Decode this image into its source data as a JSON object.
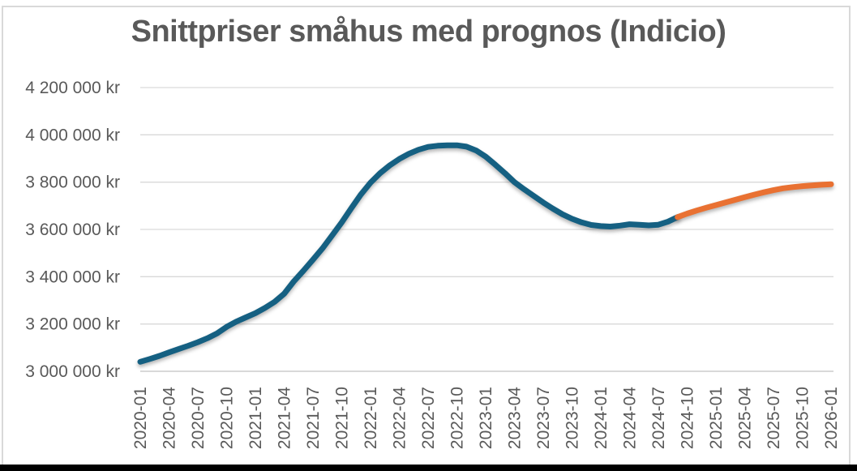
{
  "chart_data": {
    "type": "line",
    "title": "Snittpriser småhus med prognos (Indicio)",
    "xlabel": "",
    "ylabel": "",
    "y_unit": "kr",
    "ylim": [
      3000000,
      4200000
    ],
    "grid": true,
    "legend": "none",
    "y_ticks": [
      {
        "value": 4200000,
        "label": "4 200 000 kr"
      },
      {
        "value": 4000000,
        "label": "4 000 000 kr"
      },
      {
        "value": 3800000,
        "label": "3 800 000 kr"
      },
      {
        "value": 3600000,
        "label": "3 600 000 kr"
      },
      {
        "value": 3400000,
        "label": "3 400 000 kr"
      },
      {
        "value": 3200000,
        "label": "3 200 000 kr"
      },
      {
        "value": 3000000,
        "label": "3 000 000 kr"
      }
    ],
    "x_tick_labels": [
      "2020-01",
      "2020-04",
      "2020-07",
      "2020-10",
      "2021-01",
      "2021-04",
      "2021-07",
      "2021-10",
      "2022-01",
      "2022-04",
      "2022-07",
      "2022-10",
      "2023-01",
      "2023-04",
      "2023-07",
      "2023-10",
      "2024-01",
      "2024-04",
      "2024-07",
      "2024-10",
      "2025-01",
      "2025-04",
      "2025-07",
      "2025-10",
      "2026-01"
    ],
    "x_tick_every_months": 3,
    "months_total": 73,
    "series": [
      {
        "name": "actual",
        "color": "#156082",
        "start_index": 0,
        "values": [
          3040000,
          3052000,
          3065000,
          3080000,
          3094000,
          3108000,
          3123000,
          3140000,
          3160000,
          3188000,
          3210000,
          3228000,
          3246000,
          3268000,
          3294000,
          3328000,
          3380000,
          3425000,
          3472000,
          3520000,
          3575000,
          3630000,
          3690000,
          3748000,
          3798000,
          3838000,
          3871000,
          3898000,
          3920000,
          3937000,
          3949000,
          3954000,
          3956000,
          3956000,
          3950000,
          3934000,
          3908000,
          3874000,
          3838000,
          3800000,
          3770000,
          3742000,
          3714000,
          3688000,
          3664000,
          3645000,
          3630000,
          3619000,
          3614000,
          3612000,
          3616000,
          3622000,
          3620000,
          3617000,
          3620000,
          3633000,
          3652000
        ]
      },
      {
        "name": "forecast",
        "color": "#E97132",
        "start_index": 56,
        "values": [
          3652000,
          3667000,
          3680000,
          3692000,
          3703000,
          3714000,
          3725000,
          3736000,
          3747000,
          3757000,
          3766000,
          3774000,
          3779000,
          3783000,
          3786000,
          3789000,
          3791000
        ]
      }
    ]
  },
  "colors": {
    "title_text": "#595959",
    "axis_text": "#595959",
    "gridline": "#d9d9d9",
    "frame_border": "#d9d9d9",
    "actual_line": "#156082",
    "forecast_line": "#E97132",
    "bottom_bar": "#000000",
    "background": "#ffffff"
  }
}
